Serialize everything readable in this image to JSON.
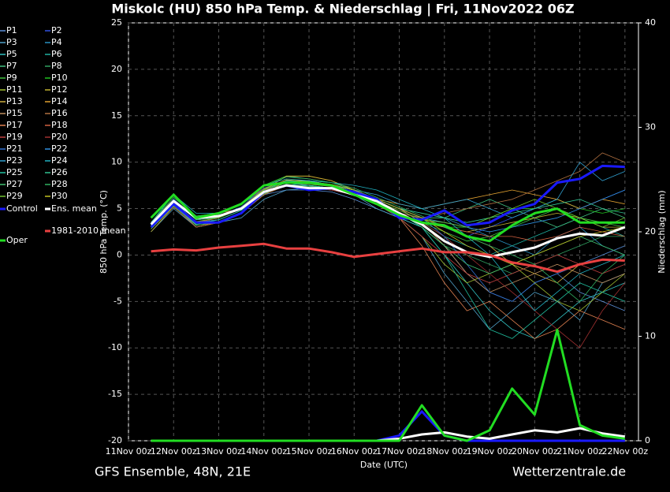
{
  "chart_data": {
    "type": "line",
    "title": "Miskolc  (HU)  850 hPa Temp. & Niederschlag | Fri, 11Nov2022 06Z",
    "x_label": "Date (UTC)",
    "y_label": "850 hPa Temp. (°C)",
    "y2_label": "Niederschlag (mm)",
    "footer_left": "GFS Ensemble, 48N, 21E",
    "footer_right": "Wetterzentrale.de",
    "grid": true,
    "xlim": [
      0,
      11.3
    ],
    "xticks": [
      {
        "value": 0,
        "label": "11Nov 00z"
      },
      {
        "value": 1,
        "label": "12Nov 00z"
      },
      {
        "value": 2,
        "label": "13Nov 00z"
      },
      {
        "value": 3,
        "label": "14Nov 00z"
      },
      {
        "value": 4,
        "label": "15Nov 00z"
      },
      {
        "value": 5,
        "label": "16Nov 00z"
      },
      {
        "value": 6,
        "label": "17Nov 00z"
      },
      {
        "value": 7,
        "label": "18Nov 00z"
      },
      {
        "value": 8,
        "label": "19Nov 00z"
      },
      {
        "value": 9,
        "label": "20Nov 00z"
      },
      {
        "value": 10,
        "label": "21Nov 00z"
      },
      {
        "value": 11,
        "label": "22Nov 00z"
      }
    ],
    "ylim": [
      -20,
      25
    ],
    "yticks": [
      -20,
      -15,
      -10,
      -5,
      0,
      5,
      10,
      15,
      20,
      25
    ],
    "y2lim": [
      0,
      40
    ],
    "y2ticks": [
      0,
      10,
      20,
      30,
      40
    ],
    "x": [
      0.5,
      1,
      1.5,
      2,
      2.5,
      3,
      3.5,
      4,
      4.5,
      5,
      5.5,
      6,
      6.5,
      7,
      7.5,
      8,
      8.5,
      9,
      9.5,
      10,
      10.5,
      11
    ],
    "series": [
      {
        "name": "P1",
        "color": "#5a8fd8",
        "values": [
          3,
          5.5,
          3,
          3.5,
          4.5,
          6.5,
          7,
          7,
          6.8,
          6,
          5,
          4,
          3,
          1,
          -2,
          -4,
          -5,
          -3,
          -2,
          -4,
          -5,
          -6
        ]
      },
      {
        "name": "P2",
        "color": "#3050e0",
        "values": [
          3.5,
          6,
          4,
          4,
          5,
          7,
          7.5,
          7.5,
          7,
          6.5,
          5.5,
          4.5,
          4,
          3,
          2,
          3,
          4,
          5,
          6,
          5,
          6,
          7
        ]
      },
      {
        "name": "P3",
        "color": "#4fa0c8",
        "values": [
          2.5,
          5,
          3,
          3.5,
          4,
          6,
          7,
          7.2,
          7,
          6.5,
          5,
          4,
          2,
          -2,
          -5,
          -8,
          -6,
          -4,
          -5,
          -7,
          -3,
          -2
        ]
      },
      {
        "name": "P4",
        "color": "#2890c0",
        "values": [
          3,
          6,
          4,
          4.5,
          5.5,
          7,
          8,
          8,
          7.5,
          7,
          6,
          5,
          4.5,
          4,
          3,
          2,
          1,
          0,
          2,
          3,
          1,
          0
        ]
      },
      {
        "name": "P5",
        "color": "#30c0c0",
        "values": [
          3,
          5.5,
          3.5,
          4,
          5,
          7,
          7.5,
          7.5,
          7.2,
          6.5,
          5.5,
          4,
          3,
          0,
          -3,
          -6,
          -8,
          -9,
          -7,
          -5,
          -4,
          -3
        ]
      },
      {
        "name": "P6",
        "color": "#20b0a0",
        "values": [
          3.2,
          6,
          4,
          4,
          5,
          6.8,
          7.5,
          7.8,
          7.5,
          7,
          6,
          5,
          3.5,
          2,
          1,
          0,
          1,
          2,
          3,
          4,
          3,
          2
        ]
      },
      {
        "name": "P7",
        "color": "#40c080",
        "values": [
          3.5,
          6.2,
          4.2,
          4.5,
          5.5,
          7.5,
          8.5,
          8.2,
          7.8,
          7,
          6,
          5,
          4,
          4,
          5,
          6,
          5,
          4,
          3,
          4,
          5,
          4
        ]
      },
      {
        "name": "P8",
        "color": "#30a060",
        "values": [
          3,
          5.8,
          3.8,
          4,
          5,
          7,
          8,
          8,
          7.5,
          7,
          6,
          4.5,
          3,
          1,
          0,
          -1,
          -2,
          -1,
          0,
          1,
          2,
          2
        ]
      },
      {
        "name": "P9",
        "color": "#40c040",
        "values": [
          2.8,
          5.5,
          3.5,
          3.8,
          4.8,
          6.8,
          7.8,
          7.5,
          7.2,
          6.5,
          5.5,
          4.5,
          3.5,
          2.5,
          1.5,
          2,
          3,
          4,
          5,
          4,
          3.5,
          3
        ]
      },
      {
        "name": "P10",
        "color": "#20c020",
        "values": [
          3.5,
          6.5,
          4.2,
          4.5,
          5.5,
          7.5,
          8.5,
          8.5,
          8,
          7,
          6,
          5,
          4,
          3,
          3,
          4,
          5,
          5,
          6,
          5,
          4.5,
          5
        ]
      },
      {
        "name": "P11",
        "color": "#a0c030",
        "values": [
          3,
          5.8,
          3.5,
          4,
          5,
          7,
          8,
          8,
          7.5,
          6.5,
          5.5,
          4,
          2,
          -1,
          -3,
          -2,
          -1,
          -3,
          -5,
          -6,
          -4,
          -2
        ]
      },
      {
        "name": "P12",
        "color": "#c0b030",
        "values": [
          2.5,
          5.2,
          3,
          3.5,
          4.5,
          6.5,
          7.5,
          7.5,
          7,
          6.5,
          5.5,
          4.5,
          3.5,
          3,
          2.5,
          3,
          3.5,
          4,
          4.5,
          4,
          3,
          3
        ]
      },
      {
        "name": "P13",
        "color": "#d0b040",
        "values": [
          3,
          5.5,
          3.2,
          3.5,
          4.5,
          6.5,
          8,
          8,
          7.5,
          7,
          6,
          5,
          4,
          3,
          2,
          1,
          -1,
          -2,
          -3,
          -1,
          0,
          1
        ]
      },
      {
        "name": "P14",
        "color": "#e0a030",
        "values": [
          3.5,
          6,
          4,
          4.5,
          5,
          7,
          8.5,
          8.5,
          8,
          7,
          6,
          5.5,
          5,
          5.5,
          6,
          6.5,
          7,
          6.5,
          6,
          5,
          6,
          5.5
        ]
      },
      {
        "name": "P15",
        "color": "#c09060",
        "values": [
          3.2,
          5.8,
          3.8,
          4,
          5,
          7,
          8,
          7.8,
          7.5,
          6.8,
          6,
          5,
          3.5,
          1,
          -2,
          -4,
          -3,
          -2,
          -1,
          -2,
          -3,
          -2
        ]
      },
      {
        "name": "P16",
        "color": "#b07040",
        "values": [
          2.8,
          5.2,
          3,
          3.5,
          4.5,
          6.5,
          7.5,
          7.2,
          7,
          6.5,
          5.5,
          4.5,
          4,
          4.5,
          5,
          5.5,
          6,
          7,
          8,
          9,
          11,
          10
        ]
      },
      {
        "name": "P17",
        "color": "#e08050",
        "values": [
          3,
          5.5,
          3.5,
          4,
          5,
          7,
          8,
          7.8,
          7.5,
          7,
          6,
          4,
          1,
          -3,
          -6,
          -5,
          -7,
          -9,
          -8,
          -6,
          -7,
          -8
        ]
      },
      {
        "name": "P18",
        "color": "#d06040",
        "values": [
          3.5,
          6,
          4,
          4.5,
          5.5,
          7.2,
          8,
          8,
          7.5,
          7,
          6,
          5,
          4,
          3,
          2.5,
          2,
          2,
          1.5,
          2,
          3,
          2.5,
          2
        ]
      },
      {
        "name": "P19",
        "color": "#c04040",
        "values": [
          3,
          5.5,
          3.5,
          4,
          5,
          7,
          7.5,
          7.5,
          7,
          6.5,
          5.5,
          4,
          2,
          0,
          -2,
          -3,
          -2,
          -1,
          0,
          -1,
          -2,
          -1
        ]
      },
      {
        "name": "P20",
        "color": "#a03030",
        "values": [
          2.8,
          5.5,
          3.5,
          3.8,
          4.8,
          6.8,
          7.5,
          7.2,
          7,
          6.5,
          5.5,
          4.5,
          3.5,
          2,
          0,
          -2,
          -4,
          -6,
          -8,
          -10,
          -6,
          -3
        ]
      },
      {
        "name": "P21",
        "color": "#3070d0",
        "values": [
          3.2,
          6,
          4,
          4.2,
          5.2,
          7.2,
          8,
          7.8,
          7.5,
          7,
          6,
          5,
          4,
          2,
          -1,
          -4,
          -5,
          -3,
          -2,
          -1,
          0,
          1
        ]
      },
      {
        "name": "P22",
        "color": "#3090e0",
        "values": [
          3.3,
          6,
          3.8,
          4.2,
          5,
          7,
          7.8,
          7.5,
          7.2,
          6.8,
          6,
          5,
          4,
          3.5,
          3,
          2.5,
          3,
          3.5,
          4,
          5,
          6,
          7
        ]
      },
      {
        "name": "P23",
        "color": "#30a0d0",
        "values": [
          3,
          5.8,
          3.5,
          3.8,
          4.8,
          7,
          8,
          8,
          7.5,
          7,
          6.5,
          5.5,
          5,
          5.5,
          6,
          5,
          4,
          5,
          6,
          10,
          8,
          9
        ]
      },
      {
        "name": "P24",
        "color": "#20b0c0",
        "values": [
          3.5,
          6.5,
          4.5,
          4.5,
          5.5,
          7.5,
          8.2,
          8,
          7.8,
          7.5,
          7,
          6,
          5,
          4,
          2,
          0,
          -3,
          -6,
          -4,
          -2,
          -1,
          0
        ]
      },
      {
        "name": "P25",
        "color": "#20c0a0",
        "values": [
          3,
          5.5,
          3.3,
          3.8,
          4.8,
          6.8,
          7.5,
          7.5,
          7.2,
          6.5,
          5.5,
          4.5,
          3,
          0,
          -4,
          -8,
          -9,
          -7,
          -5,
          -3,
          -4,
          -5
        ]
      },
      {
        "name": "P26",
        "color": "#30c090",
        "values": [
          3.2,
          5.8,
          3.8,
          4,
          5,
          7,
          8,
          7.8,
          7.5,
          7,
          6,
          5,
          4.5,
          4,
          3.5,
          4,
          4.5,
          5,
          5.5,
          6,
          5,
          4.5
        ]
      },
      {
        "name": "P27",
        "color": "#40c070",
        "values": [
          2.8,
          5.3,
          3.2,
          3.6,
          4.6,
          6.6,
          7.6,
          7.4,
          7.2,
          6.6,
          5.6,
          4.6,
          3,
          1,
          -1,
          -2,
          -1,
          0,
          1,
          2,
          1,
          0
        ]
      },
      {
        "name": "P28",
        "color": "#30b060",
        "values": [
          3.4,
          6.2,
          4.2,
          4.4,
          5.4,
          7.4,
          8.4,
          8.2,
          7.8,
          7.2,
          6.2,
          5.2,
          4.2,
          3,
          2,
          1,
          0,
          -1,
          -3,
          -5,
          -2,
          0
        ]
      },
      {
        "name": "P29",
        "color": "#70c030",
        "values": [
          3,
          5.6,
          3.6,
          4,
          5,
          7,
          7.8,
          7.6,
          7.4,
          6.8,
          5.8,
          4.8,
          3.8,
          3.5,
          3,
          4,
          5,
          6,
          5,
          4,
          3,
          4
        ]
      },
      {
        "name": "P30",
        "color": "#c0c020",
        "values": [
          3.1,
          5.9,
          3.9,
          4.1,
          5.1,
          7.1,
          8.1,
          7.9,
          7.6,
          7,
          6,
          5,
          4,
          2.5,
          1,
          0,
          -1,
          0,
          1,
          2,
          2.5,
          3
        ]
      },
      {
        "name": "Control",
        "color": "#1a1aff",
        "width": 3,
        "values": [
          3,
          5.5,
          3.5,
          3.5,
          4.5,
          6.8,
          7.5,
          7,
          7.2,
          6.8,
          6,
          4,
          3.8,
          4.8,
          3.2,
          3.5,
          4.8,
          5.5,
          7.8,
          8.2,
          9.6,
          9.5
        ],
        "precip": [
          0,
          0,
          0,
          0,
          0,
          0,
          0,
          0,
          0,
          0,
          0,
          0.5,
          2.8,
          0.5,
          0,
          0,
          0,
          0,
          0,
          0,
          0,
          0
        ]
      },
      {
        "name": "Ens. mean",
        "color": "#ffffff",
        "width": 3,
        "values": [
          3.3,
          5.8,
          4,
          4.2,
          5,
          6.8,
          7.5,
          7.2,
          7.2,
          6.5,
          5.8,
          4.5,
          3.3,
          1.5,
          0.3,
          -0.2,
          0.3,
          0.8,
          1.8,
          2.3,
          2.1,
          3
        ],
        "precip": [
          0,
          0,
          0,
          0,
          0,
          0,
          0,
          0,
          0,
          0,
          0,
          0.2,
          0.6,
          0.8,
          0.4,
          0.2,
          0.6,
          1,
          0.8,
          1.2,
          0.7,
          0.4
        ]
      },
      {
        "name": "1981-2010 mean",
        "color": "#e84040",
        "width": 3,
        "values": [
          0.4,
          0.6,
          0.5,
          0.8,
          1,
          1.2,
          0.7,
          0.7,
          0.3,
          -0.2,
          0.1,
          0.4,
          0.7,
          0.3,
          0.3,
          0,
          -0.8,
          -1.2,
          -1.8,
          -1,
          -0.5,
          -0.6
        ]
      },
      {
        "name": "Oper",
        "color": "#22dd22",
        "width": 3,
        "values": [
          4,
          6.5,
          4,
          4.5,
          5.5,
          7.5,
          7.8,
          7.8,
          7.5,
          6.5,
          5.5,
          4.3,
          3.5,
          3.2,
          2,
          1.5,
          3.2,
          4.5,
          5,
          3.5,
          3.5,
          3.5
        ],
        "precip": [
          0,
          0,
          0,
          0,
          0,
          0,
          0,
          0,
          0,
          0,
          0,
          0,
          3.4,
          0.5,
          0,
          1,
          5,
          2.5,
          10.6,
          1.5,
          0.5,
          0.2
        ]
      }
    ]
  }
}
